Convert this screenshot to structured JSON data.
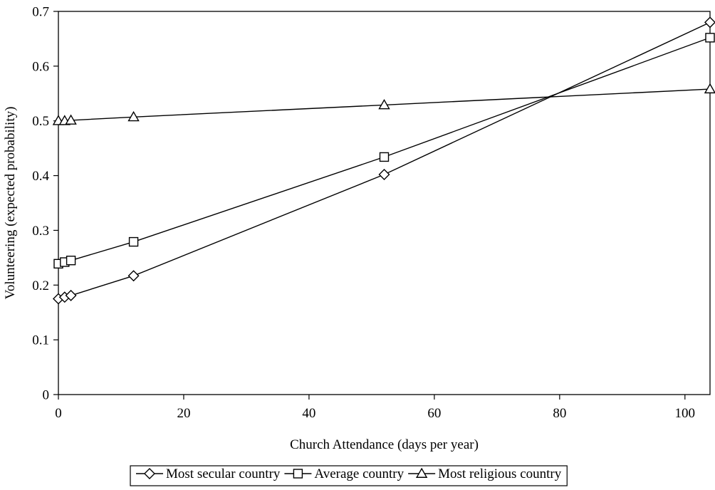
{
  "chart_data": {
    "type": "line",
    "title": "",
    "xlabel": "Church Attendance (days per year)",
    "ylabel": "Volunteering (expected probability)",
    "xlim": [
      0,
      104
    ],
    "ylim": [
      0,
      0.7
    ],
    "x_ticks": [
      0,
      20,
      40,
      60,
      80,
      100
    ],
    "y_ticks": [
      0,
      0.1,
      0.2,
      0.3,
      0.4,
      0.5,
      0.6,
      0.7
    ],
    "x_tick_labels": [
      "0",
      "20",
      "40",
      "60",
      "80",
      "100"
    ],
    "y_tick_labels": [
      "0",
      "0.1",
      "0.2",
      "0.3",
      "0.4",
      "0.5",
      "0.6",
      "0.7"
    ],
    "grid": false,
    "legend_position": "bottom",
    "x": [
      0,
      1,
      2,
      12,
      52,
      104
    ],
    "series": [
      {
        "name": "Most secular country",
        "marker": "diamond",
        "values": [
          0.175,
          0.178,
          0.181,
          0.217,
          0.402,
          0.68
        ]
      },
      {
        "name": "Average country",
        "marker": "square",
        "values": [
          0.239,
          0.242,
          0.245,
          0.279,
          0.434,
          0.652
        ]
      },
      {
        "name": "Most religious country",
        "marker": "triangle",
        "values": [
          0.5,
          0.5,
          0.501,
          0.507,
          0.529,
          0.558
        ]
      }
    ]
  }
}
